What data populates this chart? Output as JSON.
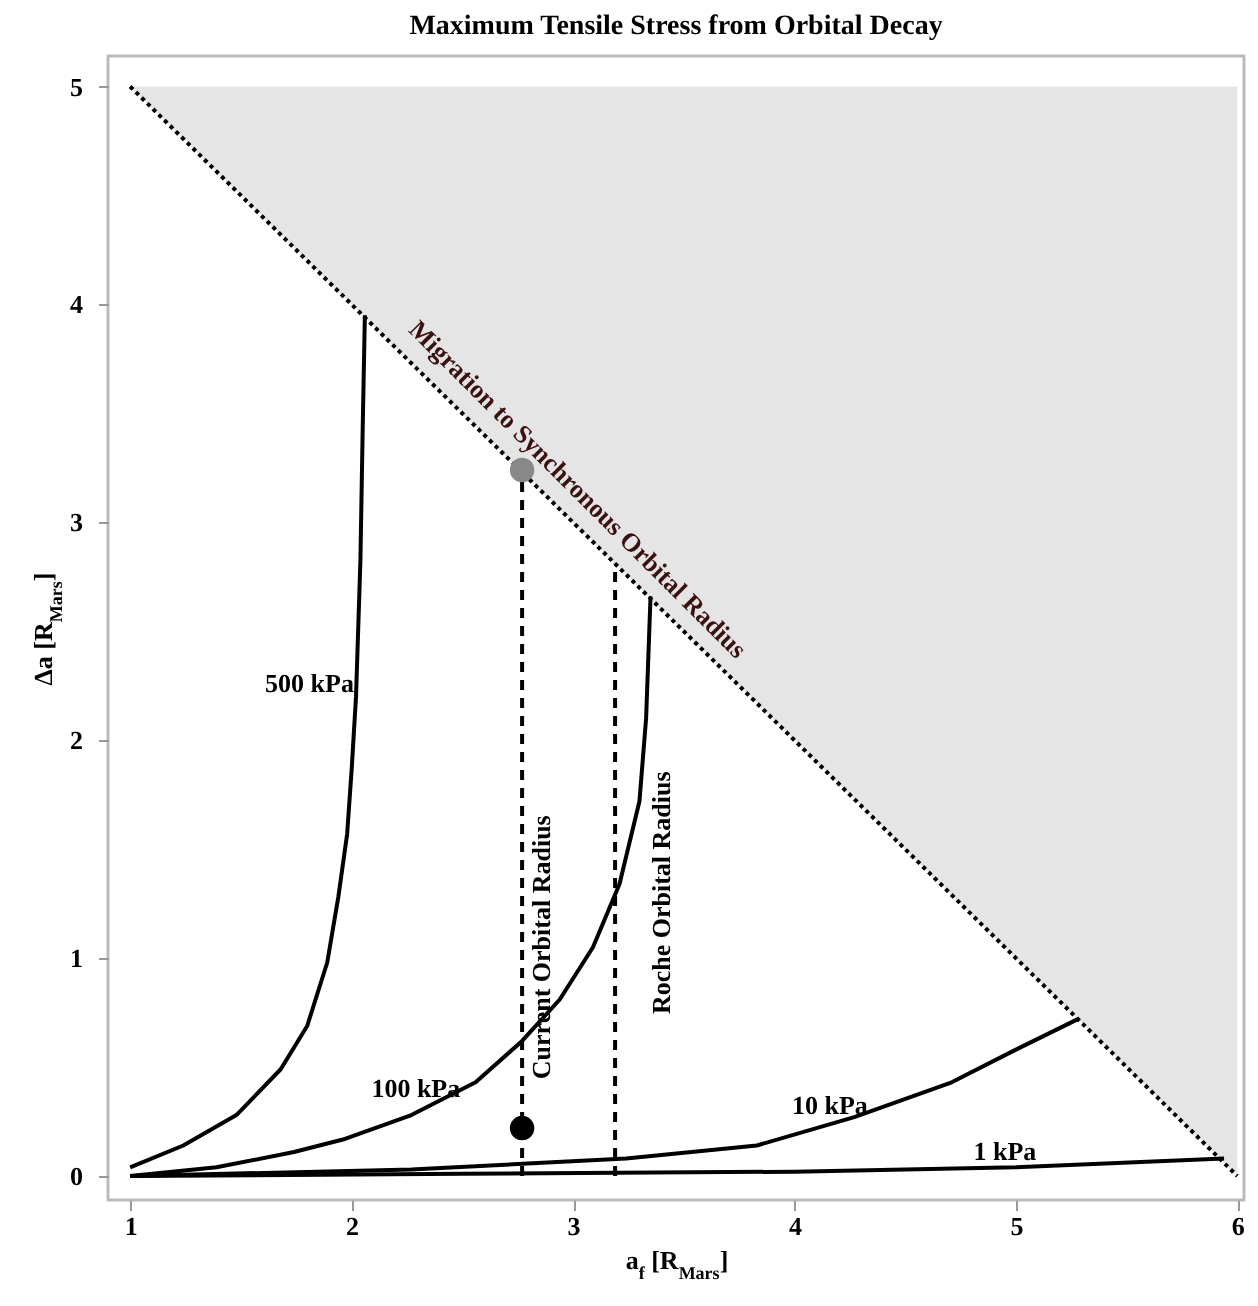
{
  "chart_data": {
    "type": "line",
    "title": "Maximum Tensile Stress from Orbital Decay",
    "xlabel": "a$_{f}$ [R$_{Mars}$]",
    "ylabel": "Δa [R$_{Mars}$]",
    "xlim": [
      0.9,
      6.03
    ],
    "ylim": [
      -0.11,
      5.14
    ],
    "xticks": [
      1,
      2,
      3,
      4,
      5,
      6
    ],
    "yticks": [
      0,
      1,
      2,
      3,
      4,
      5
    ],
    "grid": false,
    "legend": false,
    "series": [
      {
        "color": "#000000",
        "line_style": "dotted",
        "x": [
          1,
          6
        ],
        "values": [
          5,
          0
        ],
        "lower": [
          5,
          0
        ],
        "upper": [
          5,
          5
        ]
      },
      {
        "color": "#000000",
        "line_style": "dashed",
        "x": [
          2.77,
          2.77
        ],
        "values": [
          0,
          3.24
        ]
      },
      {
        "color": "#000000",
        "line_style": "dashed",
        "x": [
          3.19,
          3.19
        ],
        "values": [
          0,
          2.81
        ]
      },
      {
        "name": "500 kPa",
        "color": "#000000",
        "line_style": "solid",
        "x": [
          1,
          1.24,
          1.48,
          1.68,
          1.8,
          1.89,
          1.94,
          1.98,
          2.0,
          2.02,
          2.04,
          2.05,
          2.06
        ],
        "values": [
          0.04,
          0.14,
          0.28,
          0.49,
          0.69,
          0.98,
          1.28,
          1.57,
          1.86,
          2.2,
          2.83,
          3.42,
          3.95
        ]
      },
      {
        "name": "100 kPa",
        "color": "#000000",
        "line_style": "solid",
        "x": [
          1,
          1.39,
          1.74,
          1.97,
          2.27,
          2.56,
          2.77,
          2.94,
          3.09,
          3.21,
          3.3,
          3.33,
          3.35
        ],
        "values": [
          0,
          0.04,
          0.11,
          0.17,
          0.28,
          0.43,
          0.62,
          0.81,
          1.05,
          1.34,
          1.72,
          2.1,
          2.66
        ]
      },
      {
        "name": "10 kPa",
        "color": "#000000",
        "line_style": "solid",
        "x": [
          1,
          2.27,
          3.24,
          3.83,
          4.27,
          4.71,
          5.0,
          5.28
        ],
        "values": [
          0,
          0.03,
          0.08,
          0.14,
          0.27,
          0.43,
          0.58,
          0.72
        ]
      },
      {
        "name": "1 kPa",
        "color": "#000000",
        "line_style": "solid",
        "x": [
          1,
          2.5,
          4,
          5,
          5.94
        ],
        "values": [
          0,
          0.01,
          0.02,
          0.04,
          0.08
        ]
      },
      {
        "type": "scatter",
        "color": "#888888",
        "marker": "circle",
        "x": [
          2.77
        ],
        "values": [
          3.24
        ]
      },
      {
        "type": "scatter",
        "color": "#000000",
        "marker": "circle",
        "x": [
          2.77
        ],
        "values": [
          0.22
        ]
      }
    ],
    "annotations": [
      "Migration to Synchronous Orbital Radius",
      "Current Orbital Radius",
      "Roche Orbital Radius"
    ]
  }
}
